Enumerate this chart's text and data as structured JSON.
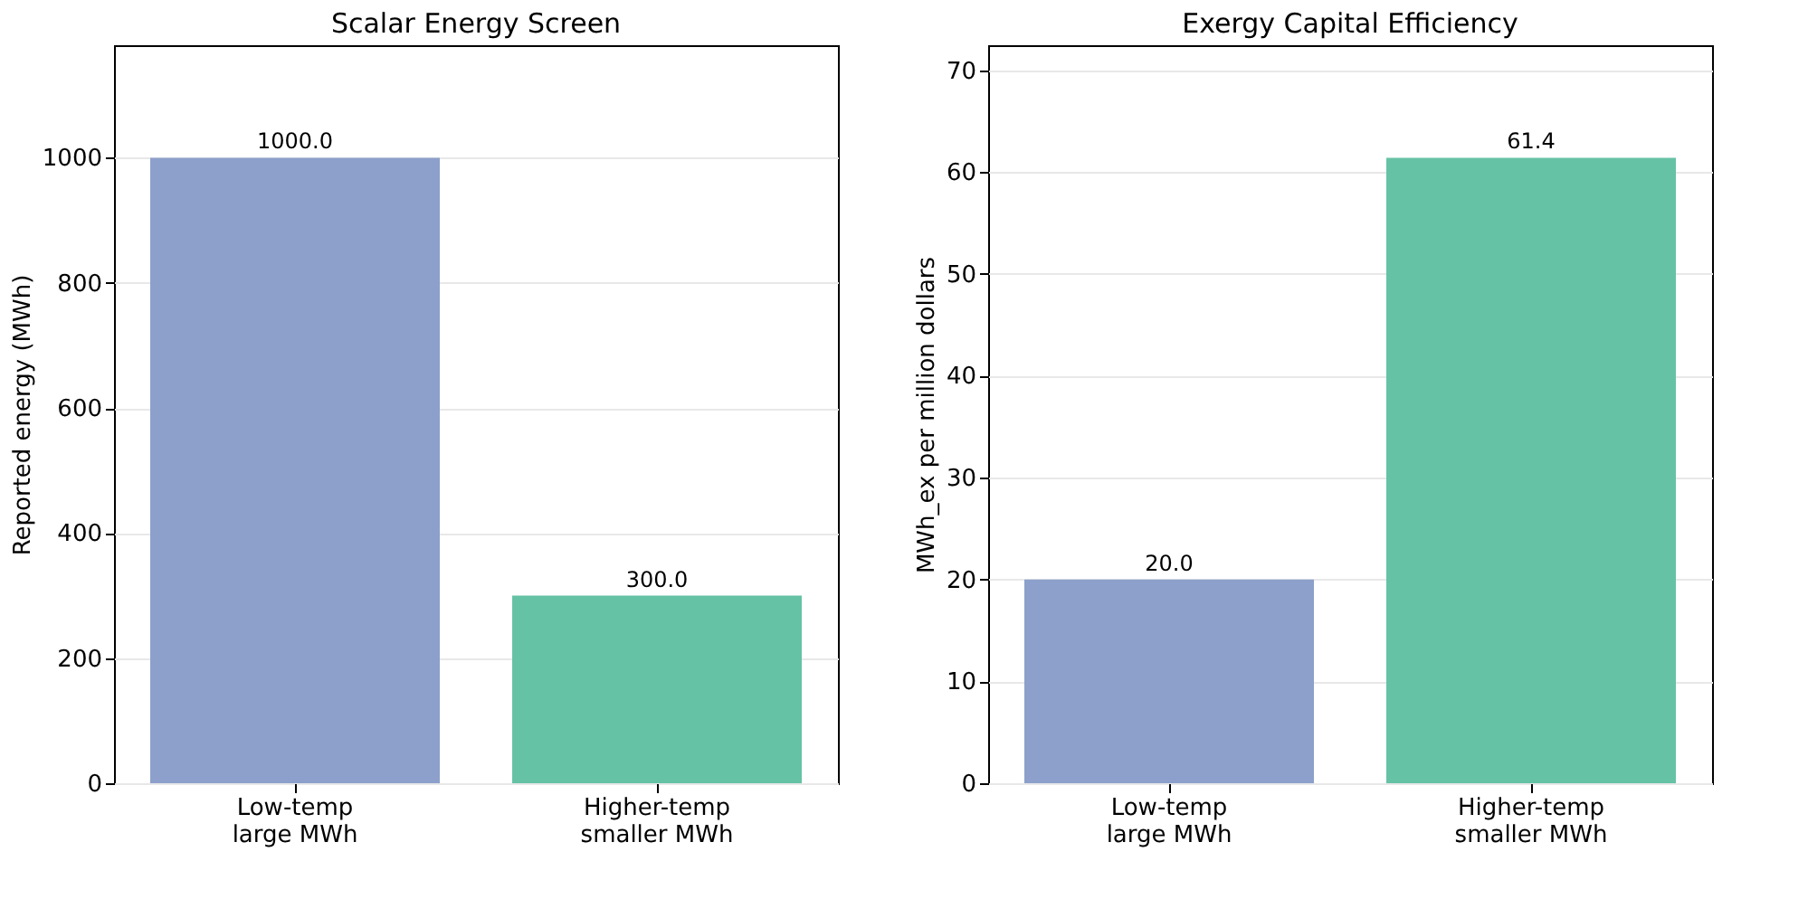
{
  "chart_data": [
    {
      "type": "bar",
      "title": "Scalar Energy Screen",
      "ylabel": "Reported energy (MWh)",
      "categories": [
        "Low-temp\nlarge MWh",
        "Higher-temp\nsmaller MWh"
      ],
      "values": [
        1000.0,
        300.0
      ],
      "colors": [
        "#8da0cb",
        "#66c2a5"
      ],
      "value_labels": [
        "1000.0",
        "300.0"
      ],
      "ylim": [
        0,
        1180
      ],
      "yticks": [
        0,
        200,
        400,
        600,
        800,
        1000
      ],
      "grid": "y"
    },
    {
      "type": "bar",
      "title": "Exergy Capital Efficiency",
      "ylabel": "MWh_ex per million dollars",
      "categories": [
        "Low-temp\nlarge MWh",
        "Higher-temp\nsmaller MWh"
      ],
      "values": [
        20.0,
        61.4
      ],
      "colors": [
        "#8da0cb",
        "#66c2a5"
      ],
      "value_labels": [
        "20.0",
        "61.4"
      ],
      "ylim": [
        0,
        72.45
      ],
      "yticks": [
        0,
        10,
        20,
        30,
        40,
        50,
        60,
        70
      ],
      "grid": "y"
    }
  ]
}
